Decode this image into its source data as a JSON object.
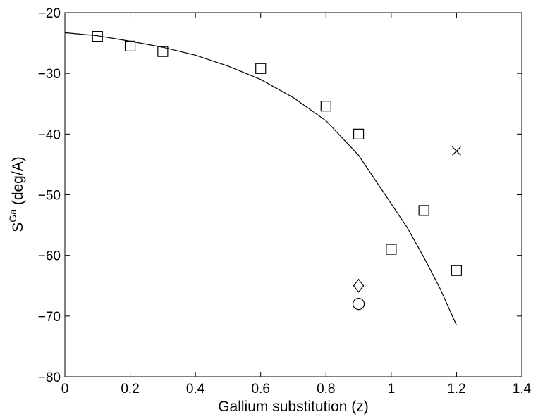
{
  "chart_data": {
    "type": "scatter",
    "title": "",
    "xlabel": "Gallium substitution (z)",
    "ylabel": {
      "main": "S",
      "superscript": "Ga",
      "unit": " (deg/A)"
    },
    "xlim": [
      0,
      1.4
    ],
    "ylim": [
      -80,
      -20
    ],
    "xticks": [
      "0",
      "0.2",
      "0.4",
      "0.6",
      "0.8",
      "1",
      "1.2",
      "1.4"
    ],
    "yticks": [
      "-80",
      "-70",
      "-60",
      "-50",
      "-40",
      "-30",
      "-20"
    ],
    "grid": false,
    "legend": "none",
    "series": [
      {
        "marker": "square",
        "x": [
          0.1,
          0.2,
          0.3,
          0.6,
          0.8,
          0.9,
          1.0,
          1.1,
          1.2
        ],
        "y": [
          -23.9,
          -25.5,
          -26.4,
          -29.2,
          -35.4,
          -40.0,
          -59.0,
          -52.6,
          -62.5
        ]
      },
      {
        "marker": "x",
        "x": [
          1.2
        ],
        "y": [
          -42.8
        ]
      },
      {
        "marker": "diamond",
        "x": [
          0.9
        ],
        "y": [
          -65.0
        ]
      },
      {
        "marker": "circle",
        "x": [
          0.9
        ],
        "y": [
          -68.0
        ]
      },
      {
        "marker": "line",
        "x": [
          0,
          0.1,
          0.2,
          0.3,
          0.4,
          0.5,
          0.6,
          0.7,
          0.8,
          0.9,
          1.0,
          1.05,
          1.1,
          1.15,
          1.2
        ],
        "y": [
          -23.3,
          -23.8,
          -24.7,
          -25.7,
          -27.0,
          -28.8,
          -31.0,
          -34.0,
          -37.8,
          -43.5,
          -51.5,
          -55.5,
          -60.3,
          -65.5,
          -71.5
        ]
      }
    ],
    "colors": {
      "axes": "#000000",
      "markers": "#000000",
      "background": "#ffffff"
    }
  }
}
